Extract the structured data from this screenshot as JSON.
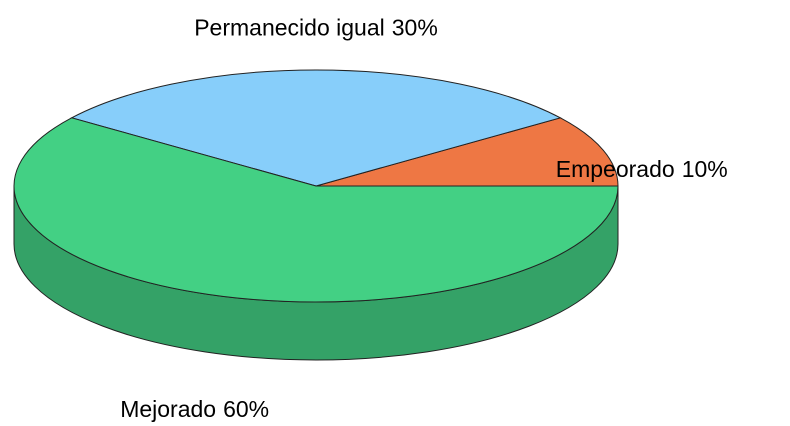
{
  "chart_data": {
    "type": "pie3d",
    "categories": [
      "Empeorado",
      "Permanecido igual",
      "Mejorado"
    ],
    "values": [
      10,
      30,
      60
    ],
    "value_labels": [
      "10%",
      "30%",
      "60%"
    ],
    "colors": [
      "#ee7744",
      "#87cefa",
      "#43d084"
    ]
  }
}
